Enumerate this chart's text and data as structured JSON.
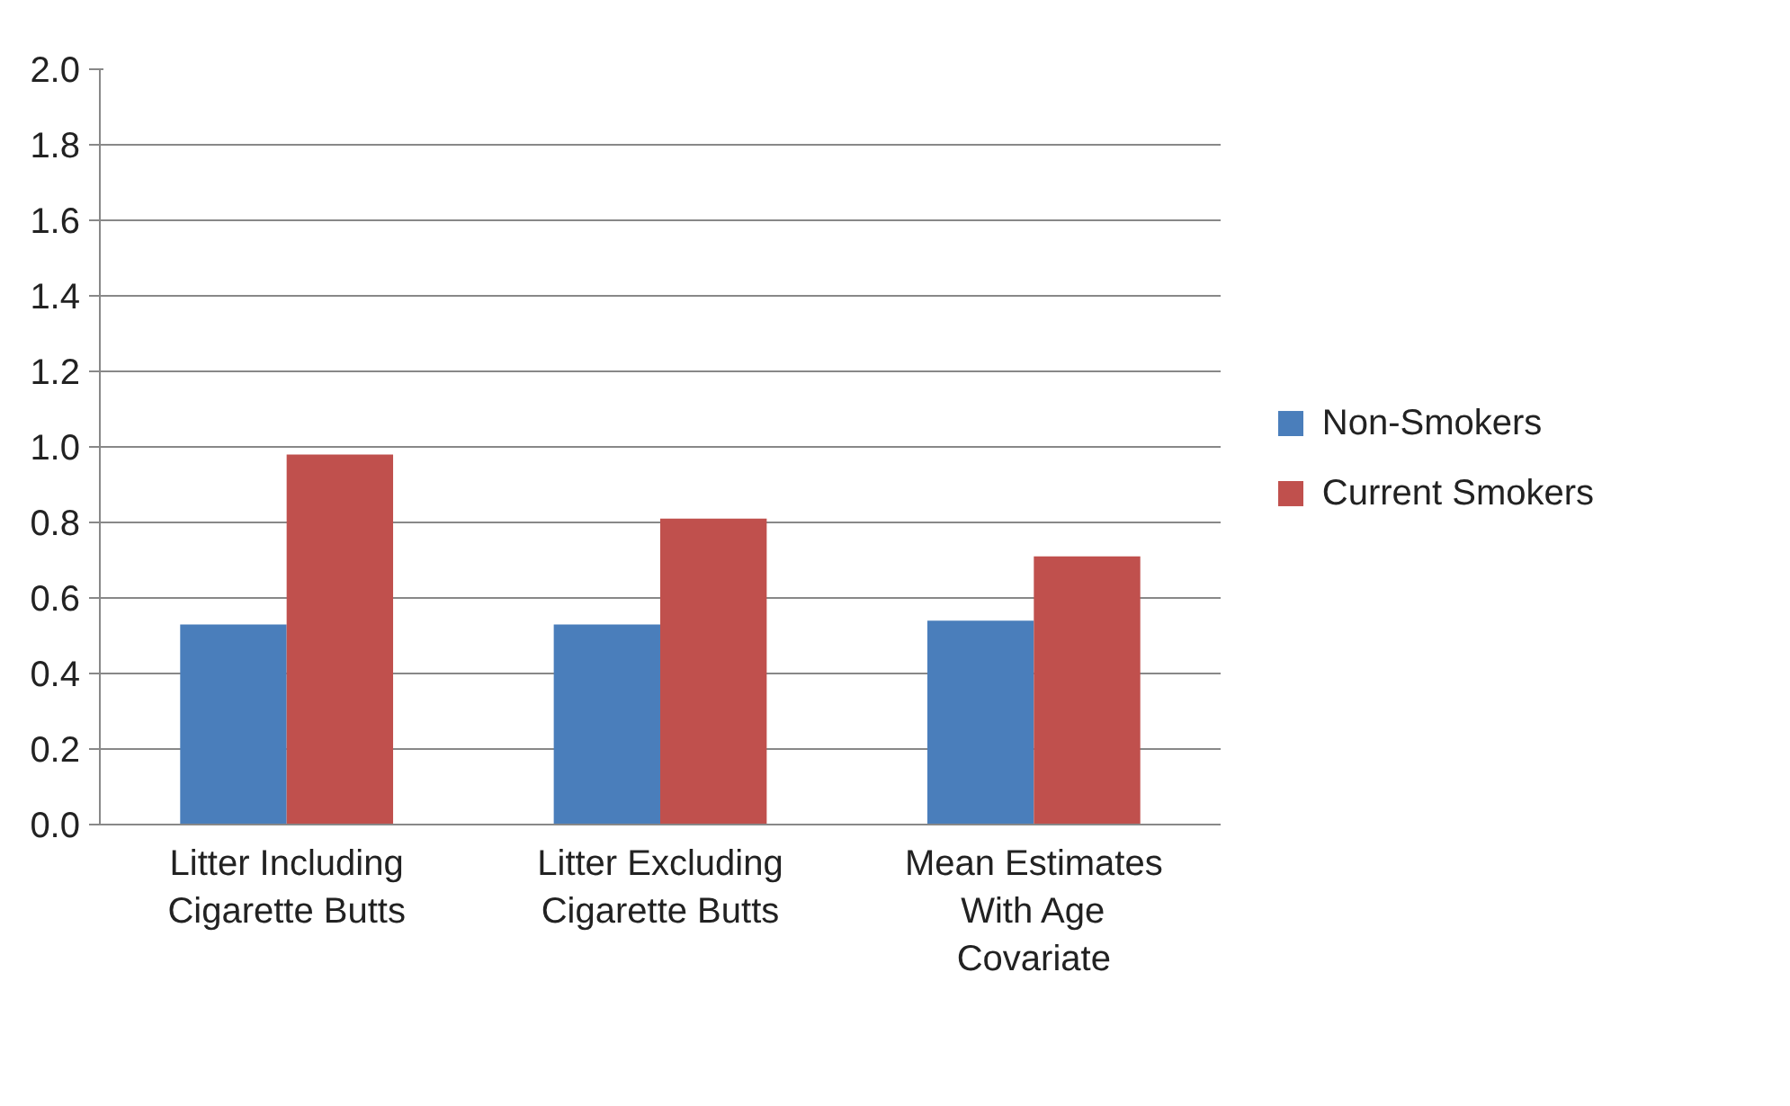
{
  "chart_data": {
    "type": "bar",
    "categories": [
      "Litter Including Cigarette Butts",
      "Litter Excluding Cigarette Butts",
      "Mean Estimates With Age Covariate"
    ],
    "series": [
      {
        "name": "Non-Smokers",
        "color": "#4a7ebb",
        "values": [
          0.53,
          0.53,
          0.54
        ]
      },
      {
        "name": "Current Smokers",
        "color": "#c0504d",
        "values": [
          0.98,
          0.81,
          0.71
        ]
      }
    ],
    "ylim": [
      0,
      2.0
    ],
    "yticks": [
      {
        "value": 0,
        "label": "0.0"
      },
      {
        "value": 0.2,
        "label": "0.2"
      },
      {
        "value": 0.4,
        "label": "0.4"
      },
      {
        "value": 0.6,
        "label": "0.6"
      },
      {
        "value": 0.8,
        "label": "0.8"
      },
      {
        "value": 1.0,
        "label": "1.0"
      },
      {
        "value": 1.2,
        "label": "1.2"
      },
      {
        "value": 1.4,
        "label": "1.4"
      },
      {
        "value": 1.6,
        "label": "1.6"
      },
      {
        "value": 1.8,
        "label": "1.8"
      },
      {
        "value": 2.0,
        "label": "2.0"
      }
    ],
    "grid": "y",
    "legend": "right"
  }
}
